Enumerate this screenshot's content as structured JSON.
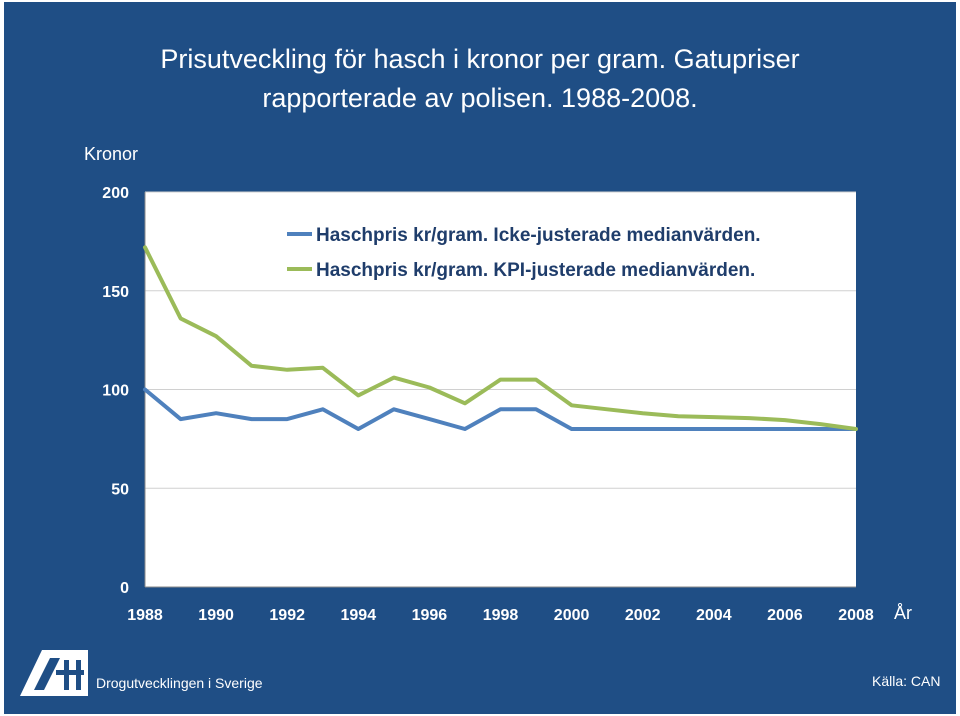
{
  "slide": {
    "title_line1": "Prisutveckling för hasch i kronor per gram. Gatupriser",
    "title_line2": "rapporterade av polisen. 1988-2008.",
    "footer_left": "Drogutvecklingen i Sverige",
    "footer_right": "Källa: CAN",
    "logo_text": "CAN"
  },
  "colors": {
    "background": "#1f4e85",
    "plot_area": "#ffffff",
    "series_blue": "#4f81bd",
    "series_green": "#9bbb59"
  },
  "chart_data": {
    "type": "line",
    "title": "Prisutveckling för hasch i kronor per gram. Gatupriser rapporterade av polisen. 1988-2008.",
    "xlabel": "År",
    "ylabel": "Kronor",
    "x": [
      1988,
      1989,
      1990,
      1991,
      1992,
      1993,
      1994,
      1995,
      1996,
      1997,
      1998,
      1999,
      2000,
      2001,
      2002,
      2003,
      2004,
      2005,
      2006,
      2007,
      2008
    ],
    "x_ticks": [
      1988,
      1990,
      1992,
      1994,
      1996,
      1998,
      2000,
      2002,
      2004,
      2006,
      2008
    ],
    "y_ticks": [
      0,
      50,
      100,
      150,
      200
    ],
    "xlim": [
      1988,
      2008
    ],
    "ylim": [
      0,
      200
    ],
    "grid": "horizontal",
    "legend_position": "top-right",
    "series": [
      {
        "name": "Haschpris kr/gram. Icke-justerade medianvärden.",
        "color": "#4f81bd",
        "values": [
          100,
          85,
          88,
          85,
          85,
          90,
          80,
          90,
          85,
          80,
          90,
          90,
          80,
          80,
          80,
          80,
          80,
          80,
          80,
          80,
          80
        ]
      },
      {
        "name": "Haschpris kr/gram. KPI-justerade medianvärden.",
        "color": "#9bbb59",
        "values": [
          172,
          136,
          127,
          112,
          110,
          111,
          97,
          106,
          101,
          93,
          105,
          105,
          92,
          90,
          88,
          86.5,
          86,
          85.5,
          84.5,
          82.5,
          80
        ]
      }
    ]
  }
}
